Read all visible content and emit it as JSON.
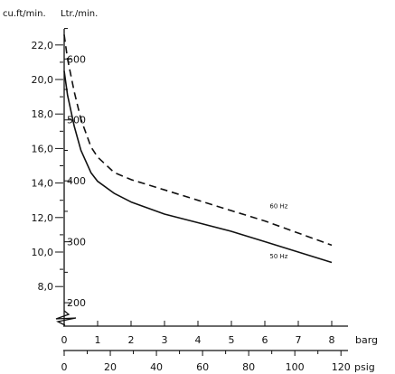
{
  "chart_data": {
    "type": "line",
    "left_axes": [
      {
        "unit": "cu.ft/min.",
        "ticks": [
          "22,0",
          "20,0",
          "18,0",
          "16,0",
          "14,0",
          "12,0",
          "10,0",
          "8,0"
        ]
      },
      {
        "unit": "Ltr./min.",
        "ticks": [
          "600",
          "500",
          "400",
          "300",
          "200"
        ]
      }
    ],
    "bottom_axes": [
      {
        "unit": "barg",
        "ticks": [
          "0",
          "1",
          "2",
          "3",
          "4",
          "5",
          "6",
          "7",
          "8"
        ]
      },
      {
        "unit": "psig",
        "ticks": [
          "0",
          "20",
          "40",
          "60",
          "80",
          "100",
          "120"
        ]
      }
    ],
    "x_range": [
      0,
      8
    ],
    "y_range_cuft": [
      6.6,
      23.0
    ],
    "series": [
      {
        "name": "60 Hz",
        "style": "dashed",
        "x": [
          0.0,
          0.1,
          0.3,
          0.5,
          0.8,
          1.0,
          1.5,
          2.0,
          3.0,
          4.0,
          5.0,
          6.0,
          7.0,
          8.0
        ],
        "y": [
          22.6,
          21.2,
          19.3,
          17.7,
          16.1,
          15.5,
          14.6,
          14.2,
          13.6,
          13.0,
          12.4,
          11.8,
          11.1,
          10.4
        ]
      },
      {
        "name": "50 Hz",
        "style": "solid",
        "x": [
          0.0,
          0.1,
          0.3,
          0.5,
          0.8,
          1.0,
          1.5,
          2.0,
          3.0,
          4.0,
          5.0,
          6.0,
          7.0,
          8.0
        ],
        "y": [
          20.5,
          19.1,
          17.3,
          15.9,
          14.6,
          14.1,
          13.4,
          12.9,
          12.2,
          11.7,
          11.2,
          10.6,
          10.0,
          9.4
        ]
      }
    ],
    "grid": false
  }
}
